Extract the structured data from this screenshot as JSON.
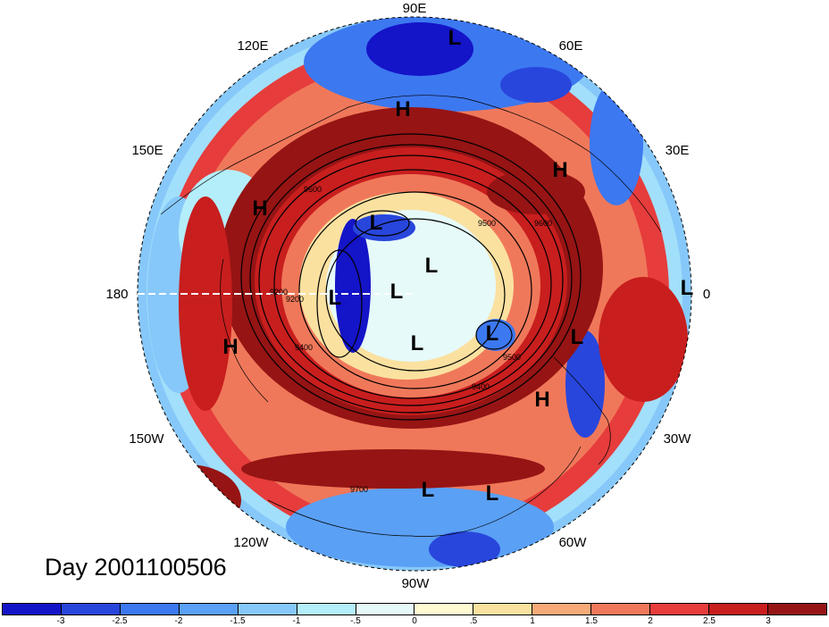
{
  "title": "Day 2001100506",
  "longitude_labels": [
    "90E",
    "60E",
    "30E",
    "0",
    "30W",
    "60W",
    "90W",
    "120W",
    "150W",
    "180",
    "150E",
    "120E"
  ],
  "contour_labels": [
    "9600",
    "9200",
    "9500",
    "9400",
    "9700",
    "9200",
    "9400",
    "9600",
    "9500"
  ],
  "pressure_centers": [
    {
      "type": "L"
    },
    {
      "type": "H"
    },
    {
      "type": "H"
    },
    {
      "type": "H"
    },
    {
      "type": "L"
    },
    {
      "type": "L"
    },
    {
      "type": "L"
    },
    {
      "type": "L"
    },
    {
      "type": "L"
    },
    {
      "type": "L"
    },
    {
      "type": "L"
    },
    {
      "type": "L"
    },
    {
      "type": "H"
    },
    {
      "type": "H"
    },
    {
      "type": "L"
    },
    {
      "type": "L"
    }
  ],
  "colorbar": {
    "labels": [
      "-3",
      "-2.5",
      "-2",
      "-1.5",
      "-1",
      "-.5",
      "0",
      ".5",
      "1",
      "1.5",
      "2",
      "2.5",
      "3"
    ],
    "colors": [
      "#1414c8",
      "#2846dc",
      "#3c78f0",
      "#5aa0f5",
      "#87c8fa",
      "#b4eefa",
      "#e6fafa",
      "#fffad2",
      "#fae1a0",
      "#f5aa78",
      "#f0785a",
      "#e63c3c",
      "#c81e1e",
      "#961414"
    ]
  }
}
